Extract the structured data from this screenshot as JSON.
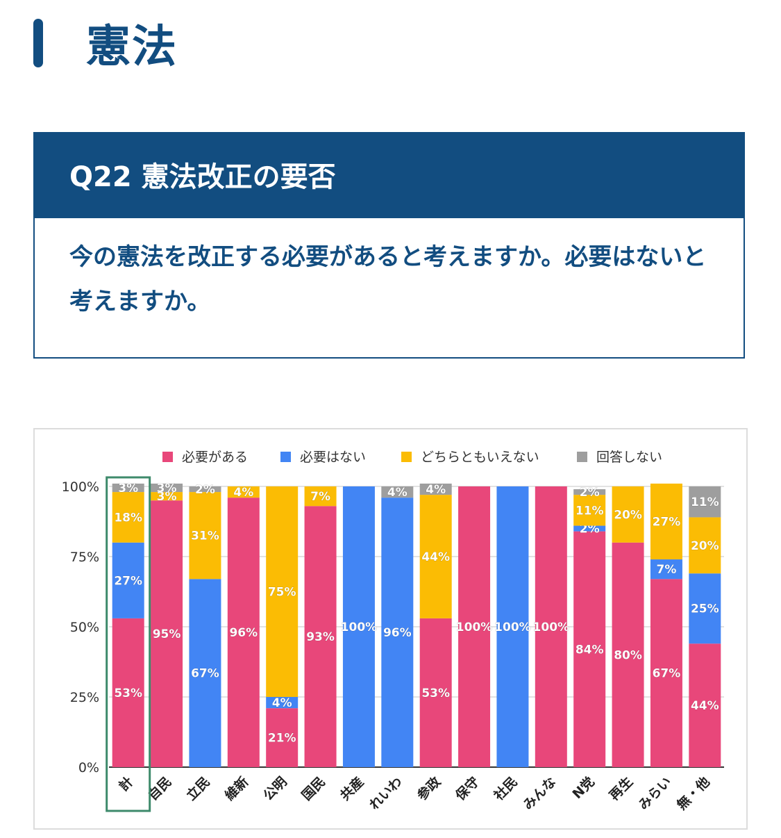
{
  "page": {
    "section_title": "憲法",
    "question": {
      "label": "Q22 憲法改正の要否",
      "text": "今の憲法を改正する必要があると考えますか。必要はないと考えますか。"
    }
  },
  "chart_data": {
    "type": "bar",
    "stacked": true,
    "categories": [
      "計",
      "自民",
      "立民",
      "維新",
      "公明",
      "国民",
      "共産",
      "れいわ",
      "参政",
      "保守",
      "社民",
      "みんな",
      "N党",
      "再生",
      "みらい",
      "無・他"
    ],
    "series": [
      {
        "name": "必要がある",
        "color": "#e8477a",
        "values": [
          53,
          95,
          0,
          96,
          21,
          93,
          0,
          0,
          53,
          100,
          0,
          100,
          84,
          80,
          67,
          44
        ]
      },
      {
        "name": "必要はない",
        "color": "#4285f4",
        "values": [
          27,
          0,
          67,
          0,
          4,
          0,
          100,
          96,
          0,
          0,
          100,
          0,
          2,
          0,
          7,
          25
        ]
      },
      {
        "name": "どちらともいえない",
        "color": "#fbbc04",
        "values": [
          18,
          3,
          31,
          4,
          75,
          7,
          0,
          0,
          44,
          0,
          0,
          0,
          11,
          20,
          27,
          20
        ]
      },
      {
        "name": "回答しない",
        "color": "#9e9e9e",
        "values": [
          3,
          3,
          2,
          0,
          0,
          0,
          0,
          4,
          4,
          0,
          0,
          0,
          2,
          0,
          0,
          11
        ]
      }
    ],
    "y_ticks": [
      "0%",
      "25%",
      "50%",
      "75%",
      "100%"
    ],
    "ylim": [
      0,
      100
    ],
    "legend_position": "top",
    "gridlines": true,
    "highlighted_category": "計",
    "highlight_color": "#3d8a6b"
  }
}
